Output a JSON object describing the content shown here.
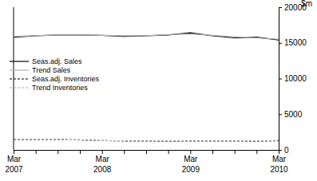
{
  "chart_data": {
    "type": "line",
    "ylabel": "$m",
    "categories": [
      "Mar 2007",
      null,
      null,
      null,
      "Mar 2008",
      null,
      null,
      null,
      "Mar 2009",
      null,
      null,
      null,
      "Mar 2010"
    ],
    "series": [
      {
        "name": "Seas.adj. Sales",
        "color": "#000000",
        "line_style": "solid",
        "values": [
          15800,
          16000,
          16100,
          16100,
          16050,
          15900,
          16000,
          16100,
          16400,
          16000,
          15700,
          15800,
          15400
        ]
      },
      {
        "name": "Trend Sales",
        "color": "#b0b0b0",
        "line_style": "solid",
        "values": [
          15900,
          16000,
          16100,
          16100,
          16050,
          16000,
          16000,
          16150,
          16250,
          16050,
          15850,
          15700,
          15500
        ]
      },
      {
        "name": "Seas.adj. Inventories",
        "color": "#000000",
        "line_style": "dashed",
        "values": [
          1450,
          1450,
          1450,
          1400,
          1300,
          1250,
          1250,
          1200,
          1250,
          1250,
          1250,
          1200,
          1300
        ]
      },
      {
        "name": "Trend Inventories",
        "color": "#b0b0b0",
        "line_style": "dashed",
        "values": [
          1450,
          1450,
          1430,
          1380,
          1300,
          1260,
          1240,
          1230,
          1240,
          1250,
          1240,
          1230,
          1250
        ]
      }
    ],
    "ylim": [
      0,
      20000
    ],
    "yticks": [
      0,
      5000,
      10000,
      15000,
      20000
    ],
    "legend": "upper left"
  }
}
